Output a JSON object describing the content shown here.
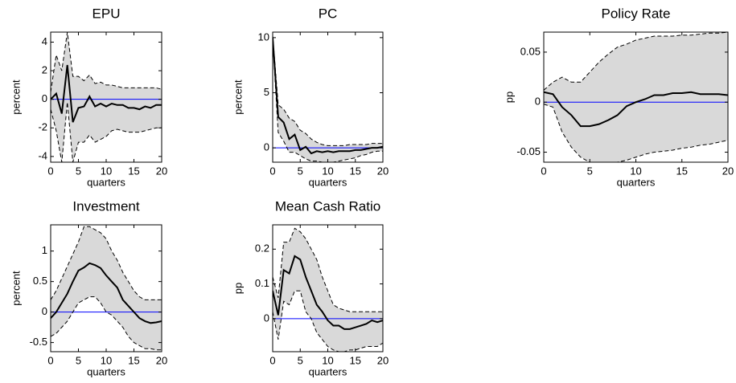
{
  "chart_data": [
    {
      "type": "line",
      "title": "EPU",
      "xlabel": "quarters",
      "ylabel": "percent",
      "x": [
        0,
        1,
        2,
        3,
        4,
        5,
        6,
        7,
        8,
        9,
        10,
        11,
        12,
        13,
        14,
        15,
        16,
        17,
        18,
        19,
        20
      ],
      "xlim": [
        0,
        20
      ],
      "xticks": [
        0,
        5,
        10,
        15,
        20
      ],
      "ylim": [
        -4.4,
        4.7
      ],
      "yticks": [
        -4,
        -2,
        0,
        2,
        4
      ],
      "series": [
        {
          "color": "#000000",
          "values": [
            0,
            0.4,
            -1.0,
            2.4,
            -1.6,
            -0.6,
            -0.5,
            0.2,
            -0.5,
            -0.3,
            -0.5,
            -0.3,
            -0.4,
            -0.4,
            -0.6,
            -0.6,
            -0.7,
            -0.5,
            -0.6,
            -0.4,
            -0.4
          ]
        }
      ],
      "band": {
        "color": "#d9d9d9",
        "edge_color": "#000000",
        "edge_style": "dashed",
        "upper": [
          0.5,
          3.1,
          2.0,
          4.7,
          1.6,
          1.6,
          1.3,
          1.7,
          1.1,
          1.2,
          1.0,
          1.0,
          0.9,
          0.8,
          0.8,
          0.8,
          0.8,
          0.8,
          0.8,
          0.8,
          0.7
        ],
        "lower": [
          -0.7,
          -2.2,
          -4.4,
          -0.2,
          -4.4,
          -3.0,
          -3.0,
          -2.5,
          -3.0,
          -2.8,
          -2.6,
          -2.2,
          -2.1,
          -2.2,
          -2.3,
          -2.3,
          -2.3,
          -2.2,
          -2.1,
          -2.0,
          -2.0
        ]
      },
      "hline": {
        "value": 0,
        "color": "#0000ff"
      }
    },
    {
      "type": "line",
      "title": "PC",
      "xlabel": "quarters",
      "ylabel": "percent",
      "x": [
        0,
        1,
        2,
        3,
        4,
        5,
        6,
        7,
        8,
        9,
        10,
        11,
        12,
        13,
        14,
        15,
        16,
        17,
        18,
        19,
        20
      ],
      "xlim": [
        0,
        20
      ],
      "xticks": [
        0,
        5,
        10,
        15,
        20
      ],
      "ylim": [
        -1.3,
        10.5
      ],
      "yticks": [
        0,
        5,
        10
      ],
      "series": [
        {
          "color": "#000000",
          "values": [
            10,
            2.8,
            2.3,
            0.8,
            1.2,
            -0.2,
            0.1,
            -0.5,
            -0.3,
            -0.4,
            -0.3,
            -0.4,
            -0.3,
            -0.3,
            -0.3,
            -0.2,
            -0.2,
            -0.1,
            0,
            0,
            0.1
          ]
        }
      ],
      "band": {
        "color": "#d9d9d9",
        "edge_color": "#000000",
        "edge_style": "dashed",
        "upper": [
          10.2,
          3.9,
          3.5,
          2.7,
          2.4,
          1.6,
          1.3,
          0.8,
          0.5,
          0.3,
          0.2,
          0.2,
          0.2,
          0.2,
          0.3,
          0.3,
          0.3,
          0.3,
          0.4,
          0.4,
          0.4
        ],
        "lower": [
          9.8,
          1.4,
          0.6,
          -0.4,
          -0.4,
          -0.7,
          -1.0,
          -1.2,
          -1.2,
          -1.3,
          -1.3,
          -1.3,
          -1.2,
          -1.1,
          -1.0,
          -0.9,
          -0.7,
          -0.6,
          -0.4,
          -0.3,
          -0.3
        ]
      },
      "hline": {
        "value": 0,
        "color": "#0000ff"
      }
    },
    {
      "type": "line",
      "title": "Policy Rate",
      "xlabel": "quarters",
      "ylabel": "pp",
      "x": [
        0,
        1,
        2,
        3,
        4,
        5,
        6,
        7,
        8,
        9,
        10,
        11,
        12,
        13,
        14,
        15,
        16,
        17,
        18,
        19,
        20
      ],
      "xlim": [
        0,
        20
      ],
      "xticks": [
        0,
        5,
        10,
        15,
        20
      ],
      "ylim": [
        -0.06,
        0.07
      ],
      "yticks": [
        -0.05,
        0,
        0.05
      ],
      "series": [
        {
          "color": "#000000",
          "values": [
            0.01,
            0.008,
            -0.005,
            -0.013,
            -0.024,
            -0.024,
            -0.022,
            -0.018,
            -0.013,
            -0.004,
            0,
            0.003,
            0.007,
            0.007,
            0.009,
            0.009,
            0.01,
            0.008,
            0.008,
            0.008,
            0.007
          ]
        }
      ],
      "band": {
        "color": "#d9d9d9",
        "edge_color": "#000000",
        "edge_style": "dashed",
        "upper": [
          0.012,
          0.02,
          0.025,
          0.02,
          0.02,
          0.03,
          0.04,
          0.048,
          0.055,
          0.058,
          0.062,
          0.064,
          0.066,
          0.066,
          0.066,
          0.067,
          0.067,
          0.068,
          0.069,
          0.069,
          0.07
        ],
        "lower": [
          -0.002,
          -0.005,
          -0.03,
          -0.045,
          -0.055,
          -0.06,
          -0.06,
          -0.06,
          -0.06,
          -0.058,
          -0.055,
          -0.052,
          -0.05,
          -0.049,
          -0.048,
          -0.046,
          -0.045,
          -0.043,
          -0.042,
          -0.04,
          -0.038
        ]
      },
      "hline": {
        "value": 0,
        "color": "#0000ff"
      }
    },
    {
      "type": "line",
      "title": "Investment",
      "xlabel": "quarters",
      "ylabel": "percent",
      "x": [
        0,
        1,
        2,
        3,
        4,
        5,
        6,
        7,
        8,
        9,
        10,
        11,
        12,
        13,
        14,
        15,
        16,
        17,
        18,
        19,
        20
      ],
      "xlim": [
        0,
        20
      ],
      "xticks": [
        0,
        5,
        10,
        15,
        20
      ],
      "ylim": [
        -0.65,
        1.43
      ],
      "yticks": [
        -0.5,
        0,
        0.5,
        1
      ],
      "series": [
        {
          "color": "#000000",
          "values": [
            -0.1,
            0,
            0.15,
            0.3,
            0.5,
            0.68,
            0.73,
            0.8,
            0.77,
            0.72,
            0.6,
            0.5,
            0.4,
            0.2,
            0.1,
            0,
            -0.1,
            -0.15,
            -0.18,
            -0.17,
            -0.15
          ]
        }
      ],
      "band": {
        "color": "#d9d9d9",
        "edge_color": "#000000",
        "edge_style": "dashed",
        "upper": [
          0.2,
          0.35,
          0.55,
          0.75,
          0.95,
          1.15,
          1.4,
          1.4,
          1.35,
          1.3,
          1.2,
          1.0,
          0.85,
          0.65,
          0.5,
          0.35,
          0.25,
          0.2,
          0.2,
          0.2,
          0.2
        ],
        "lower": [
          -0.4,
          -0.35,
          -0.25,
          -0.15,
          0,
          0.15,
          0.2,
          0.25,
          0.25,
          0.15,
          0,
          -0.05,
          -0.15,
          -0.25,
          -0.4,
          -0.5,
          -0.55,
          -0.6,
          -0.6,
          -0.62,
          -0.62
        ]
      },
      "hline": {
        "value": 0,
        "color": "#0000ff"
      }
    },
    {
      "type": "line",
      "title": "Mean Cash Ratio",
      "xlabel": "quarters",
      "ylabel": "pp",
      "x": [
        0,
        1,
        2,
        3,
        4,
        5,
        6,
        7,
        8,
        9,
        10,
        11,
        12,
        13,
        14,
        15,
        16,
        17,
        18,
        19,
        20
      ],
      "xlim": [
        0,
        20
      ],
      "xticks": [
        0,
        5,
        10,
        15,
        20
      ],
      "ylim": [
        -0.095,
        0.27
      ],
      "yticks": [
        0,
        0.1,
        0.2
      ],
      "series": [
        {
          "color": "#000000",
          "values": [
            0.08,
            0.01,
            0.14,
            0.13,
            0.18,
            0.17,
            0.12,
            0.08,
            0.04,
            0.02,
            -0.005,
            -0.02,
            -0.02,
            -0.03,
            -0.03,
            -0.025,
            -0.02,
            -0.015,
            -0.005,
            -0.01,
            -0.005
          ]
        }
      ],
      "band": {
        "color": "#d9d9d9",
        "edge_color": "#000000",
        "edge_style": "dashed",
        "upper": [
          0.12,
          0.06,
          0.22,
          0.22,
          0.26,
          0.25,
          0.23,
          0.2,
          0.17,
          0.12,
          0.08,
          0.04,
          0.03,
          0.025,
          0.02,
          0.02,
          0.02,
          0.02,
          0.02,
          0.02,
          0.02
        ],
        "lower": [
          0.02,
          -0.06,
          0.05,
          0.04,
          0.08,
          0.08,
          0.02,
          0,
          -0.04,
          -0.06,
          -0.08,
          -0.09,
          -0.095,
          -0.095,
          -0.09,
          -0.09,
          -0.085,
          -0.08,
          -0.08,
          -0.08,
          -0.07
        ]
      },
      "hline": {
        "value": 0,
        "color": "#0000ff"
      }
    }
  ]
}
